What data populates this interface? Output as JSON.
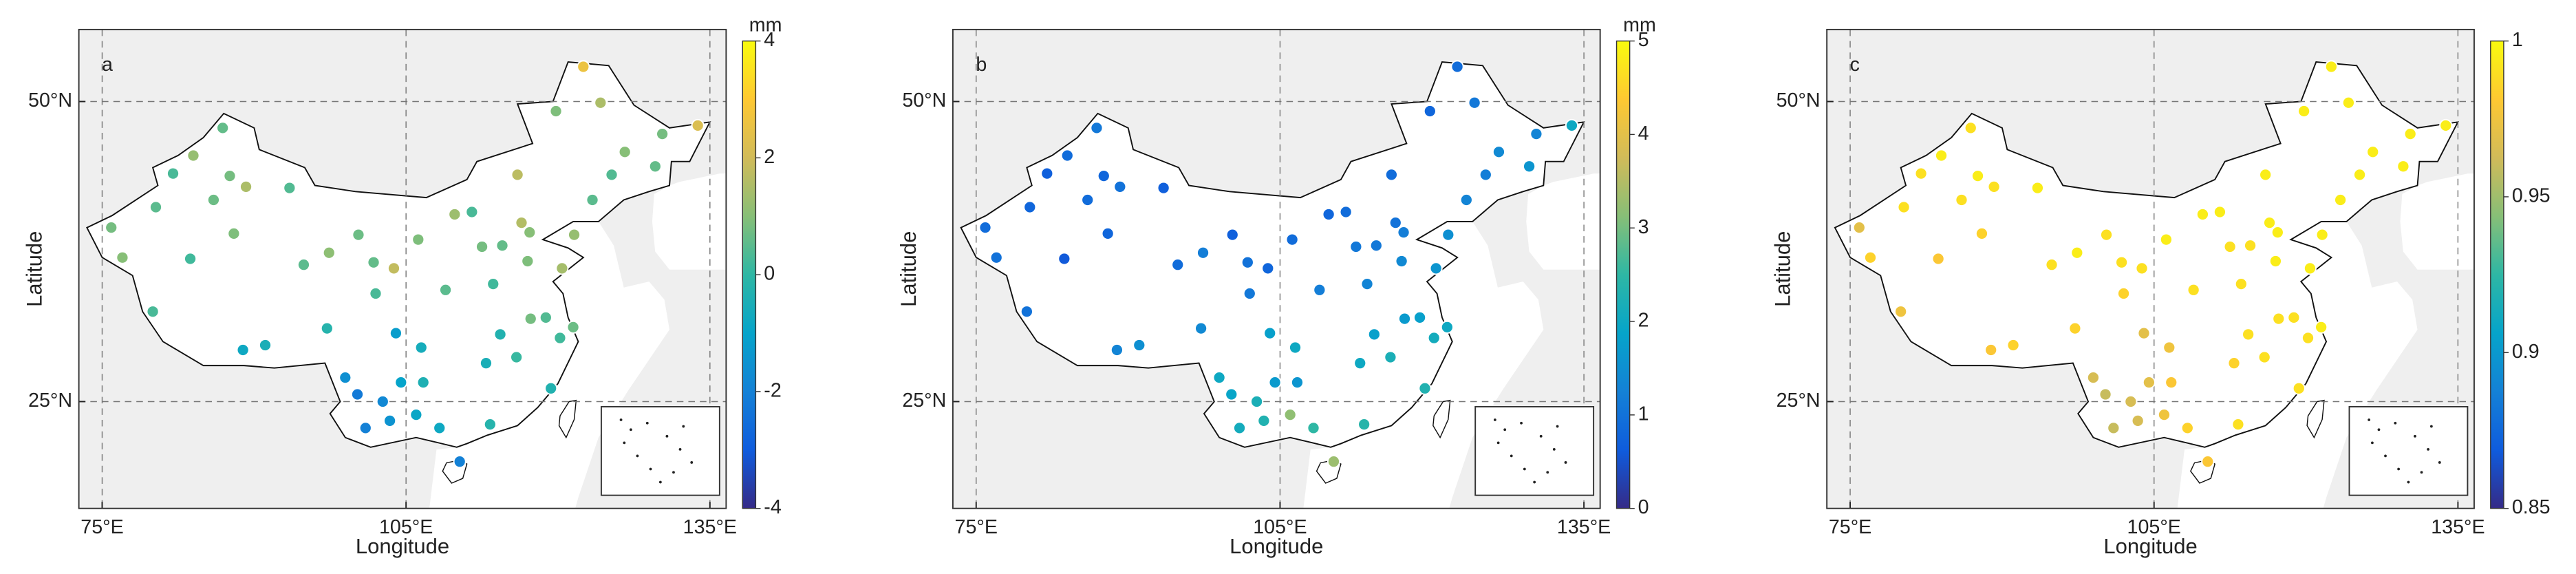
{
  "stations": {
    "lon": [
      75.9,
      77,
      80.3,
      82,
      84,
      86.9,
      87.6,
      89.2,
      93.5,
      86,
      83.7,
      88,
      94.9,
      97.4,
      91.1,
      88.9,
      80,
      97.2,
      101.8,
      103.8,
      106.2,
      100.3,
      104,
      106.5,
      102.7,
      100.2,
      103.4,
      101,
      104.5,
      106.7,
      108.9,
      111.5,
      109.8,
      112.5,
      113.6,
      114.3,
      112.9,
      115.9,
      113.3,
      108.3,
      110.3,
      116.4,
      117.2,
      114.5,
      117,
      120.4,
      118.8,
      121.5,
      120.2,
      119.3,
      117.3,
      123.4,
      121.6,
      125.3,
      126.6,
      129.6,
      124.2,
      122.5,
      130.3,
      133.8,
      119.8,
      116,
      102,
      99,
      106
    ],
    "lat": [
      39.5,
      37,
      41.2,
      44,
      45.5,
      47.8,
      43.8,
      42.9,
      42.8,
      41.8,
      36.9,
      39,
      36.4,
      37.4,
      29.7,
      29.3,
      32.5,
      31.1,
      36.6,
      36.1,
      38.5,
      38.9,
      30.7,
      29.5,
      25,
      25.6,
      23.4,
      22.8,
      26.6,
      26.6,
      34.3,
      40.8,
      40.6,
      37.9,
      34.8,
      30.6,
      28.2,
      28.7,
      23.1,
      22.8,
      20,
      39.9,
      39.1,
      38,
      36.7,
      36.1,
      32,
      31.2,
      30.3,
      26.1,
      31.9,
      41.8,
      38.9,
      43.9,
      45.8,
      44.6,
      49.9,
      52.9,
      47.3,
      48,
      49.2,
      43.9,
      34,
      27,
      23.9
    ]
  },
  "chart_data": [
    {
      "type": "map",
      "label": "a",
      "xlabel": "Longitude",
      "ylabel": "Latitude",
      "xlim": [
        72.7,
        136.6
      ],
      "ylim": [
        16.1,
        56
      ],
      "xticks": [
        {
          "value": 75,
          "label": "75°E"
        },
        {
          "value": 105,
          "label": "105°E"
        },
        {
          "value": 135,
          "label": "135°E"
        }
      ],
      "yticks": [
        {
          "value": 50,
          "label": "50°N"
        },
        {
          "value": 25,
          "label": "25°N"
        }
      ],
      "grid": true,
      "colorbar": {
        "label": "mm",
        "lim": [
          -4,
          4
        ],
        "ticks": [
          4,
          2,
          0,
          -2,
          -4
        ]
      },
      "colormap": [
        "#352a87",
        "#0f5cdd",
        "#1481d6",
        "#06a4ca",
        "#2eb7a4",
        "#87bf77",
        "#d1bb59",
        "#fec832",
        "#f9fb0e"
      ],
      "values": [
        0.8,
        1.0,
        0.5,
        0.3,
        1.2,
        0.6,
        0.8,
        1.5,
        0.4,
        0.7,
        0.2,
        0.9,
        0.5,
        1.1,
        -0.5,
        -0.8,
        0.3,
        -0.2,
        0.6,
        1.8,
        0.9,
        0.7,
        -1.2,
        -0.6,
        -1.8,
        -2.2,
        -1.5,
        -2.0,
        -1.0,
        -0.4,
        0.5,
        0.3,
        1.3,
        0.8,
        0.2,
        -0.3,
        -0.5,
        0.1,
        -0.2,
        -0.8,
        -2.0,
        1.6,
        1.0,
        0.6,
        0.9,
        1.4,
        0.4,
        0.7,
        0.2,
        -0.3,
        0.8,
        0.5,
        1.2,
        0.4,
        1.0,
        0.6,
        1.5,
        2.6,
        0.8,
        2.2,
        0.9,
        1.7,
        0.3,
        -1.6,
        -0.9
      ]
    },
    {
      "type": "map",
      "label": "b",
      "xlabel": "Longitude",
      "ylabel": "Latitude",
      "xlim": [
        72.7,
        136.6
      ],
      "ylim": [
        16.1,
        56
      ],
      "xticks": [
        {
          "value": 75,
          "label": "75°E"
        },
        {
          "value": 105,
          "label": "105°E"
        },
        {
          "value": 135,
          "label": "135°E"
        }
      ],
      "yticks": [
        {
          "value": 50,
          "label": "50°N"
        },
        {
          "value": 25,
          "label": "25°N"
        }
      ],
      "grid": true,
      "colorbar": {
        "label": "mm",
        "lim": [
          0,
          5
        ],
        "ticks": [
          5,
          4,
          3,
          2,
          1,
          0
        ]
      },
      "colormap": [
        "#352a87",
        "#0f5cdd",
        "#1481d6",
        "#06a4ca",
        "#2eb7a4",
        "#87bf77",
        "#d1bb59",
        "#fec832",
        "#f9fb0e"
      ],
      "values": [
        0.9,
        1.0,
        0.8,
        0.7,
        0.9,
        1.1,
        0.8,
        1.0,
        0.7,
        0.9,
        0.6,
        0.8,
        0.9,
        1.2,
        1.5,
        1.3,
        1.0,
        1.4,
        1.0,
        0.8,
        0.9,
        0.7,
        1.8,
        2.0,
        2.2,
        1.9,
        2.3,
        2.1,
        1.7,
        1.6,
        1.2,
        0.9,
        0.8,
        1.1,
        1.3,
        1.8,
        2.0,
        2.2,
        2.4,
        2.5,
        3.3,
        1.0,
        1.2,
        1.1,
        1.4,
        1.6,
        1.8,
        2.0,
        2.1,
        2.3,
        1.7,
        1.3,
        1.5,
        1.2,
        1.4,
        1.6,
        1.1,
        0.9,
        1.3,
        2.0,
        0.8,
        0.9,
        1.1,
        2.0,
        3.2
      ]
    },
    {
      "type": "map",
      "label": "c",
      "xlabel": "Longitude",
      "ylabel": "Latitude",
      "xlim": [
        72.7,
        136.6
      ],
      "ylim": [
        16.1,
        56
      ],
      "xticks": [
        {
          "value": 75,
          "label": "75°E"
        },
        {
          "value": 105,
          "label": "105°E"
        },
        {
          "value": 135,
          "label": "135°E"
        }
      ],
      "yticks": [
        {
          "value": 50,
          "label": "50°N"
        },
        {
          "value": 25,
          "label": "25°N"
        }
      ],
      "grid": true,
      "colorbar": {
        "lim": [
          0.85,
          1
        ],
        "ticks": [
          1,
          0.95,
          0.9,
          0.85
        ]
      },
      "colormap": [
        "#352a87",
        "#0f5cdd",
        "#1481d6",
        "#06a4ca",
        "#2eb7a4",
        "#87bf77",
        "#d1bb59",
        "#fec832",
        "#f9fb0e"
      ],
      "values": [
        0.97,
        0.985,
        0.99,
        0.99,
        0.995,
        0.99,
        0.995,
        0.99,
        0.995,
        0.99,
        0.98,
        0.985,
        0.99,
        0.995,
        0.985,
        0.98,
        0.975,
        0.985,
        0.99,
        0.99,
        0.995,
        0.99,
        0.97,
        0.975,
        0.965,
        0.96,
        0.965,
        0.96,
        0.97,
        0.98,
        0.99,
        0.995,
        0.995,
        0.99,
        0.99,
        0.99,
        0.985,
        0.99,
        0.99,
        0.985,
        0.98,
        0.995,
        0.995,
        0.99,
        0.995,
        0.995,
        0.99,
        0.995,
        0.99,
        0.99,
        0.99,
        0.995,
        0.995,
        0.995,
        0.995,
        0.995,
        0.995,
        0.995,
        0.995,
        0.995,
        0.995,
        0.995,
        0.985,
        0.965,
        0.975
      ]
    }
  ]
}
